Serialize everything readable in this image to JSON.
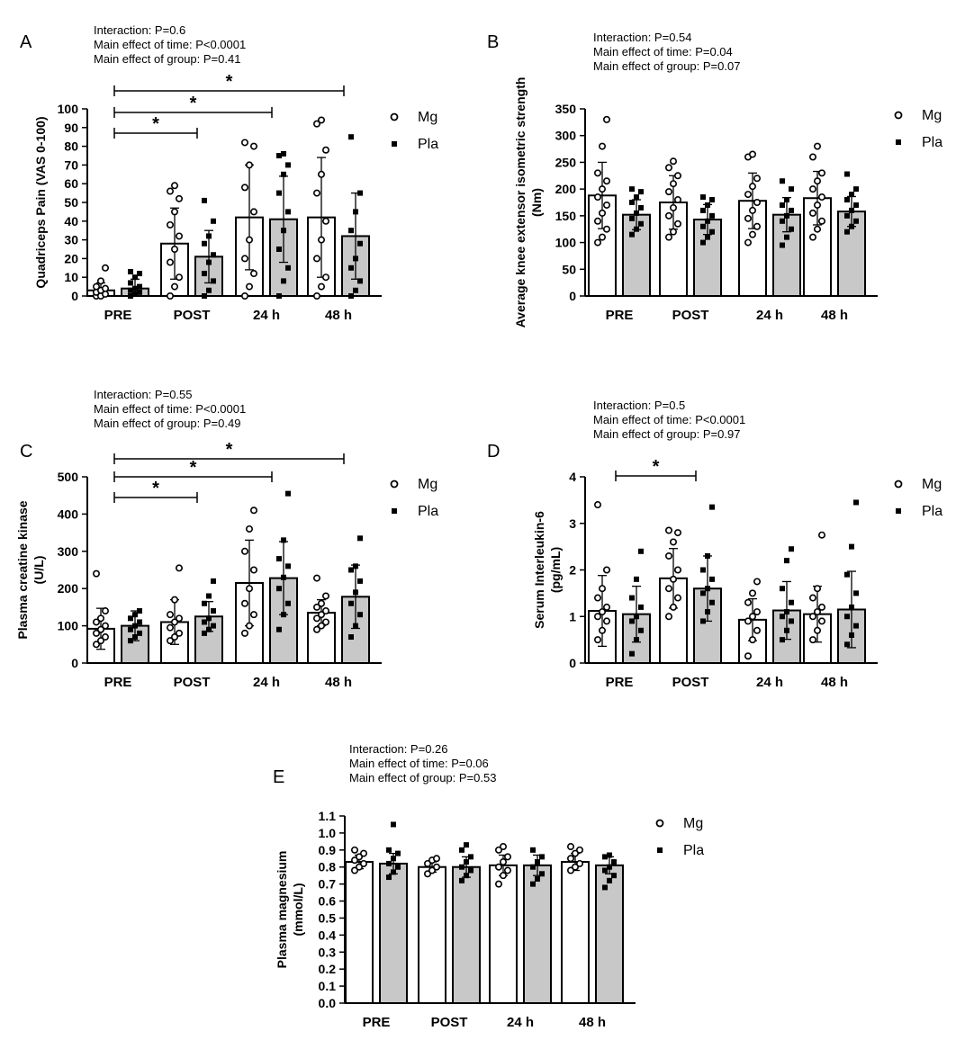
{
  "legend": {
    "mg_label": "Mg",
    "pla_label": "Pla"
  },
  "colors": {
    "mg_fill": "#ffffff",
    "pla_fill": "#c8c8c8",
    "stroke": "#000000"
  },
  "chart_data": [
    {
      "panel": "A",
      "type": "bar",
      "ylabel": "Quadriceps Pain (VAS 0-100)",
      "stats": [
        "Interaction: P=0.6",
        "Main effect of time: P<0.0001",
        "Main effect of group: P=0.41"
      ],
      "categories": [
        "PRE",
        "POST",
        "24 h",
        "48 h"
      ],
      "ylim": [
        0,
        100
      ],
      "yticks": [
        "0",
        "10",
        "20",
        "30",
        "40",
        "50",
        "60",
        "70",
        "80",
        "90",
        "100"
      ],
      "series": [
        {
          "name": "Mg",
          "values": [
            3,
            28,
            42,
            42
          ],
          "sd": [
            4,
            19,
            28,
            32
          ],
          "points": [
            [
              0,
              0,
              1,
              2,
              3,
              4,
              5,
              8,
              15
            ],
            [
              0,
              5,
              10,
              18,
              25,
              32,
              38,
              45,
              52,
              56,
              59
            ],
            [
              0,
              5,
              12,
              20,
              30,
              45,
              58,
              70,
              80,
              82
            ],
            [
              0,
              5,
              10,
              20,
              30,
              40,
              55,
              65,
              78,
              92,
              94
            ]
          ]
        },
        {
          "name": "Pla",
          "values": [
            4,
            21,
            41,
            32
          ],
          "sd": [
            5,
            14,
            23,
            23
          ],
          "points": [
            [
              0,
              1,
              2,
              3,
              4,
              5,
              7,
              10,
              12,
              13
            ],
            [
              0,
              3,
              8,
              12,
              18,
              22,
              28,
              32,
              40,
              51
            ],
            [
              0,
              8,
              15,
              25,
              35,
              45,
              55,
              65,
              70,
              75,
              76
            ],
            [
              0,
              3,
              8,
              15,
              20,
              28,
              35,
              45,
              55,
              85
            ]
          ]
        }
      ],
      "significance": [
        {
          "from": 0,
          "to": 1,
          "label": "*"
        },
        {
          "from": 0,
          "to": 2,
          "label": "*"
        },
        {
          "from": 0,
          "to": 3,
          "label": "*"
        }
      ]
    },
    {
      "panel": "B",
      "type": "bar",
      "ylabel": "Average knee extensor isometric strength (Nm)",
      "stats": [
        "Interaction: P=0.54",
        "Main effect of time: P=0.04",
        "Main effect of group: P=0.07"
      ],
      "categories": [
        "PRE",
        "POST",
        "24 h",
        "48 h"
      ],
      "ylim": [
        0,
        350
      ],
      "yticks": [
        "0",
        "50",
        "100",
        "150",
        "200",
        "250",
        "300",
        "350"
      ],
      "series": [
        {
          "name": "Mg",
          "values": [
            188,
            175,
            178,
            183
          ],
          "sd": [
            62,
            50,
            52,
            50
          ],
          "points": [
            [
              100,
              110,
              125,
              140,
              155,
              170,
              185,
              200,
              215,
              230,
              280,
              330
            ],
            [
              110,
              120,
              135,
              150,
              165,
              180,
              195,
              210,
              225,
              240,
              252
            ],
            [
              100,
              115,
              130,
              145,
              160,
              175,
              190,
              205,
              220,
              260,
              265
            ],
            [
              110,
              125,
              140,
              155,
              170,
              185,
              200,
              215,
              230,
              260,
              280
            ]
          ]
        },
        {
          "name": "Pla",
          "values": [
            152,
            143,
            152,
            158
          ],
          "sd": [
            28,
            28,
            32,
            28
          ],
          "points": [
            [
              115,
              125,
              135,
              145,
              155,
              165,
              175,
              185,
              195,
              200
            ],
            [
              100,
              110,
              120,
              130,
              140,
              150,
              160,
              170,
              180,
              185
            ],
            [
              95,
              110,
              125,
              140,
              150,
              160,
              170,
              180,
              200,
              215
            ],
            [
              120,
              130,
              140,
              150,
              160,
              170,
              180,
              190,
              200,
              228
            ]
          ]
        }
      ],
      "significance": []
    },
    {
      "panel": "C",
      "type": "bar",
      "ylabel": "Plasma creatine kinase (U/L)",
      "stats": [
        "Interaction: P=0.55",
        "Main effect of time: P<0.0001",
        "Main effect of group: P=0.49"
      ],
      "categories": [
        "PRE",
        "POST",
        "24 h",
        "48 h"
      ],
      "ylim": [
        0,
        500
      ],
      "yticks": [
        "0",
        "100",
        "200",
        "300",
        "400",
        "500"
      ],
      "series": [
        {
          "name": "Mg",
          "values": [
            92,
            110,
            215,
            135
          ],
          "sd": [
            55,
            60,
            115,
            35
          ],
          "points": [
            [
              50,
              60,
              70,
              80,
              90,
              100,
              110,
              120,
              140,
              240
            ],
            [
              60,
              70,
              80,
              95,
              110,
              120,
              130,
              170,
              255
            ],
            [
              80,
              100,
              130,
              160,
              200,
              250,
              300,
              360,
              410
            ],
            [
              90,
              100,
              110,
              120,
              130,
              140,
              150,
              160,
              180,
              228
            ]
          ]
        },
        {
          "name": "Pla",
          "values": [
            100,
            125,
            228,
            178
          ],
          "sd": [
            40,
            40,
            98,
            85
          ],
          "points": [
            [
              60,
              70,
              80,
              90,
              100,
              110,
              120,
              130,
              140
            ],
            [
              80,
              90,
              100,
              110,
              120,
              140,
              160,
              180,
              220
            ],
            [
              90,
              130,
              160,
              200,
              230,
              260,
              280,
              330,
              455
            ],
            [
              70,
              100,
              130,
              160,
              190,
              220,
              250,
              260,
              335
            ]
          ]
        }
      ],
      "significance": [
        {
          "from": 0,
          "to": 1,
          "label": "*"
        },
        {
          "from": 0,
          "to": 2,
          "label": "*"
        },
        {
          "from": 0,
          "to": 3,
          "label": "*"
        }
      ]
    },
    {
      "panel": "D",
      "type": "bar",
      "ylabel": "Serum Interleukin-6 (pg/mL)",
      "stats": [
        "Interaction: P=0.5",
        "Main effect of time: P<0.0001",
        "Main effect of group: P=0.97"
      ],
      "categories": [
        "PRE",
        "POST",
        "24 h",
        "48 h"
      ],
      "ylim": [
        0,
        4
      ],
      "yticks": [
        "0",
        "1",
        "2",
        "3",
        "4"
      ],
      "series": [
        {
          "name": "Mg",
          "values": [
            1.12,
            1.82,
            0.93,
            1.05
          ],
          "sd": [
            0.76,
            0.64,
            0.45,
            0.6
          ],
          "points": [
            [
              0.5,
              0.7,
              0.9,
              1.0,
              1.1,
              1.2,
              1.4,
              1.6,
              2.0,
              3.4
            ],
            [
              1.0,
              1.2,
              1.4,
              1.6,
              1.8,
              2.0,
              2.3,
              2.6,
              2.8,
              2.85
            ],
            [
              0.15,
              0.5,
              0.7,
              0.9,
              1.0,
              1.1,
              1.3,
              1.5,
              1.75
            ],
            [
              0.5,
              0.7,
              0.9,
              1.0,
              1.1,
              1.2,
              1.4,
              1.6,
              2.75
            ]
          ]
        },
        {
          "name": "Pla",
          "values": [
            1.05,
            1.6,
            1.13,
            1.15
          ],
          "sd": [
            0.6,
            0.7,
            0.62,
            0.82
          ],
          "points": [
            [
              0.2,
              0.5,
              0.7,
              0.9,
              1.0,
              1.2,
              1.4,
              1.8,
              2.4
            ],
            [
              0.9,
              1.1,
              1.3,
              1.5,
              1.6,
              1.8,
              2.0,
              2.3,
              3.35
            ],
            [
              0.5,
              0.7,
              0.9,
              1.0,
              1.1,
              1.3,
              1.6,
              2.2,
              2.45
            ],
            [
              0.4,
              0.6,
              0.8,
              1.0,
              1.2,
              1.5,
              1.9,
              2.5,
              3.45
            ]
          ]
        }
      ],
      "significance": [
        {
          "from": 0,
          "to": 1,
          "label": "*"
        }
      ]
    },
    {
      "panel": "E",
      "type": "bar",
      "ylabel": "Plasma magnesium (mmol/L)",
      "stats": [
        "Interaction: P=0.26",
        "Main effect of time: P=0.06",
        "Main effect of group: P=0.53"
      ],
      "categories": [
        "PRE",
        "POST",
        "24 h",
        "48 h"
      ],
      "ylim": [
        0,
        1.1
      ],
      "yticks": [
        "0.0",
        "0.1",
        "0.2",
        "0.3",
        "0.4",
        "0.5",
        "0.6",
        "0.7",
        "0.8",
        "0.9",
        "1.0",
        "1.1"
      ],
      "series": [
        {
          "name": "Mg",
          "values": [
            0.83,
            0.8,
            0.81,
            0.83
          ],
          "sd": [
            0.04,
            0.03,
            0.06,
            0.05
          ],
          "points": [
            [
              0.78,
              0.8,
              0.82,
              0.84,
              0.86,
              0.88,
              0.9
            ],
            [
              0.76,
              0.78,
              0.8,
              0.82,
              0.84,
              0.85
            ],
            [
              0.7,
              0.75,
              0.78,
              0.8,
              0.83,
              0.86,
              0.9,
              0.92
            ],
            [
              0.78,
              0.8,
              0.82,
              0.85,
              0.88,
              0.9,
              0.92
            ]
          ]
        },
        {
          "name": "Pla",
          "values": [
            0.82,
            0.8,
            0.81,
            0.81
          ],
          "sd": [
            0.06,
            0.06,
            0.06,
            0.05
          ],
          "points": [
            [
              0.74,
              0.77,
              0.8,
              0.82,
              0.85,
              0.88,
              0.9,
              1.05
            ],
            [
              0.72,
              0.75,
              0.78,
              0.8,
              0.83,
              0.86,
              0.9,
              0.93
            ],
            [
              0.7,
              0.73,
              0.76,
              0.8,
              0.83,
              0.86,
              0.9
            ],
            [
              0.68,
              0.72,
              0.75,
              0.78,
              0.8,
              0.83,
              0.86,
              0.87
            ]
          ]
        }
      ],
      "significance": []
    }
  ]
}
